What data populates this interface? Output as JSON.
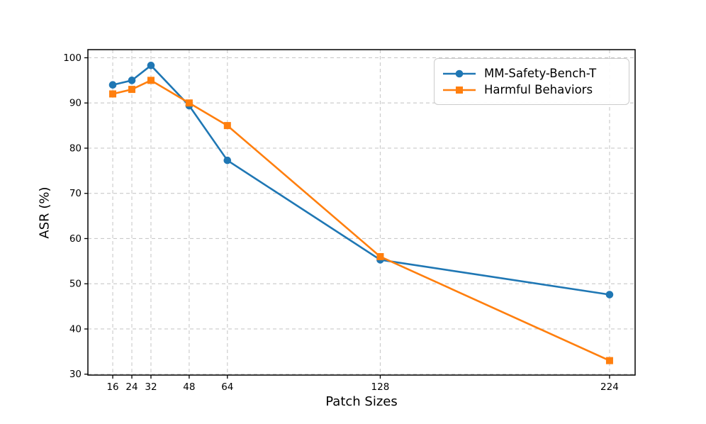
{
  "figure": {
    "background": "#ffffff"
  },
  "chart_data": {
    "type": "line",
    "title": "",
    "xlabel": "Patch Sizes",
    "ylabel": "ASR (%)",
    "x": [
      16,
      24,
      32,
      48,
      64,
      128,
      224
    ],
    "series": [
      {
        "name": "MM-Safety-Bench-T",
        "color": "#1f77b4",
        "marker": "circle",
        "values": [
          94,
          95,
          98.3,
          89.4,
          77.3,
          55.3,
          47.6
        ]
      },
      {
        "name": "Harmful Behaviors",
        "color": "#ff7f0e",
        "marker": "square",
        "values": [
          92,
          93,
          95,
          90,
          85,
          56,
          33
        ]
      }
    ],
    "x_ticks": [
      16,
      24,
      32,
      48,
      64,
      128,
      224
    ],
    "y_ticks": [
      30,
      40,
      50,
      60,
      70,
      80,
      90,
      100
    ],
    "xlim": [
      5.6,
      234.7
    ],
    "ylim": [
      29.8,
      101.8
    ],
    "grid": true,
    "grid_style": "dashed",
    "legend": {
      "position": "upper right",
      "entries": [
        "MM-Safety-Bench-T",
        "Harmful Behaviors"
      ]
    },
    "colors": {
      "grid": "#c9c9c9",
      "spine": "#000000",
      "text": "#000000",
      "series_blue": "#1f77b4",
      "series_orange": "#ff7f0e"
    }
  }
}
